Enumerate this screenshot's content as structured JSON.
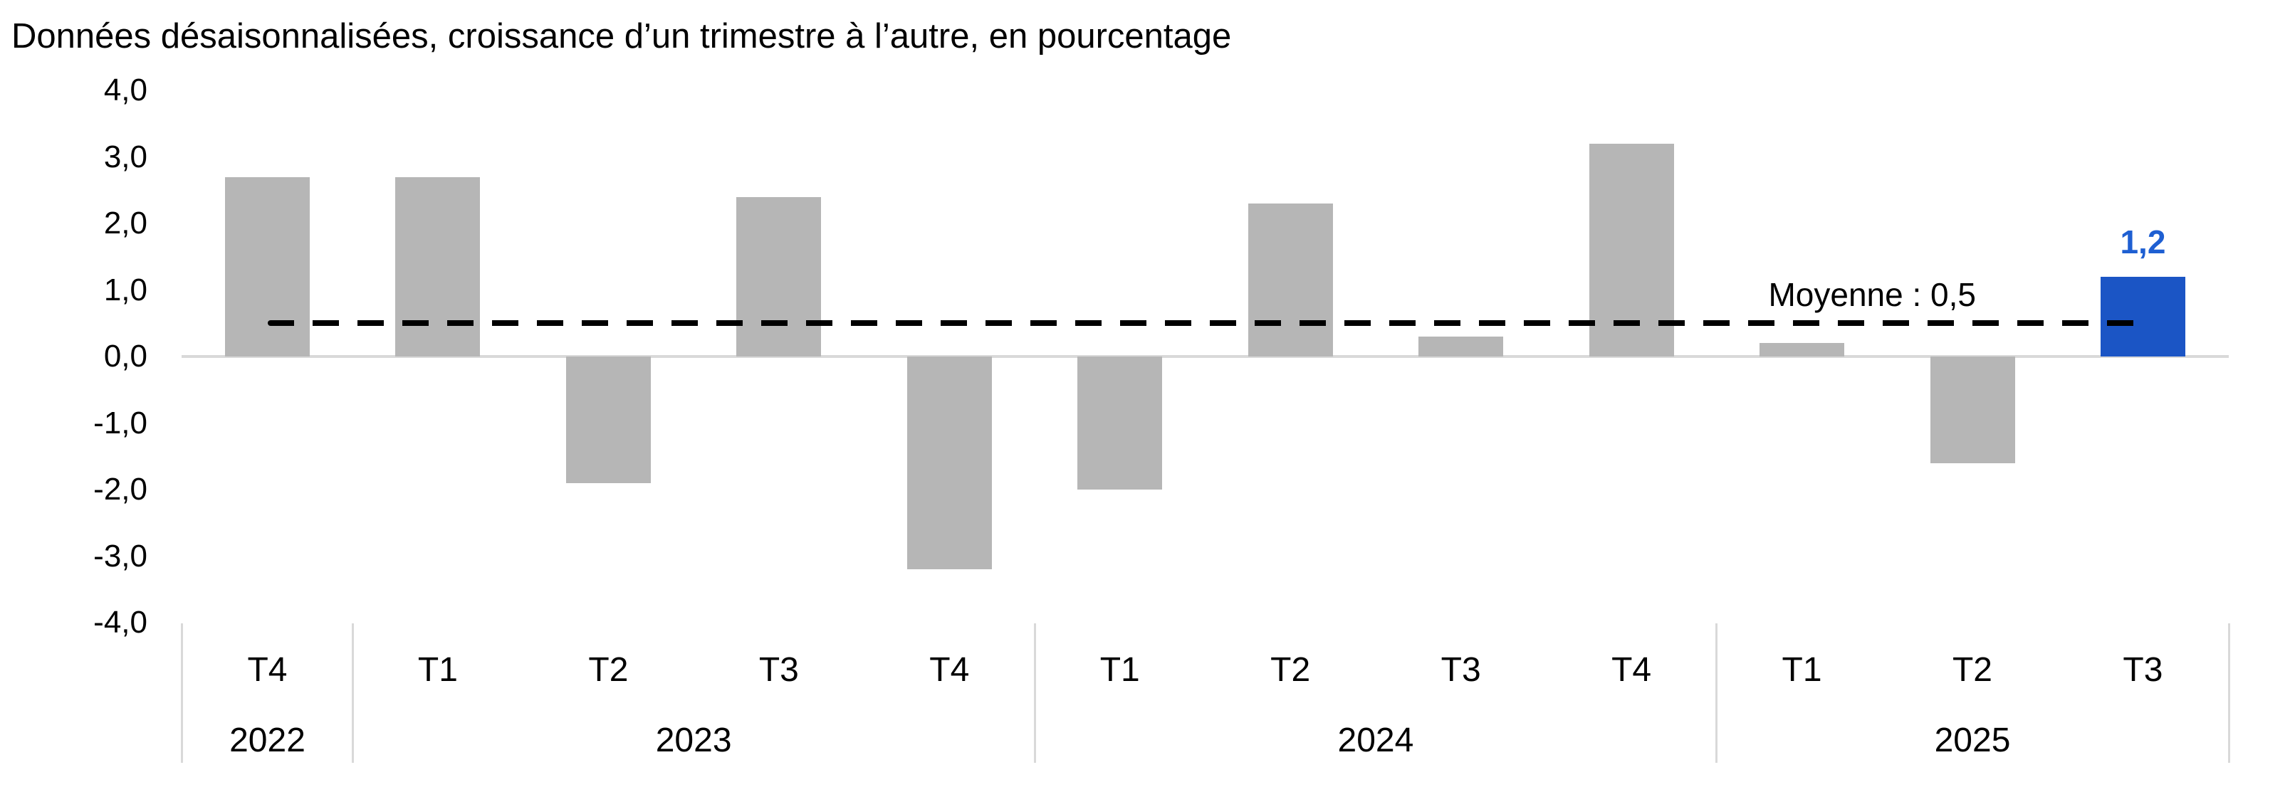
{
  "title": "Données désaisonnalisées, croissance d’un trimestre à l’autre, en pourcentage",
  "chart_data": {
    "type": "bar",
    "quarters": [
      "T4",
      "T1",
      "T2",
      "T3",
      "T4",
      "T1",
      "T2",
      "T3",
      "T4",
      "T1",
      "T2",
      "T3"
    ],
    "year_groups": [
      {
        "label": "2022",
        "count": 1
      },
      {
        "label": "2023",
        "count": 4
      },
      {
        "label": "2024",
        "count": 4
      },
      {
        "label": "2025",
        "count": 3
      }
    ],
    "values": [
      2.7,
      2.7,
      -1.9,
      2.4,
      -3.2,
      -2.0,
      2.3,
      0.3,
      3.2,
      0.2,
      -1.6,
      1.2
    ],
    "highlight_index": 11,
    "highlight_value_label": "1,2",
    "mean_line": {
      "value": 0.5,
      "label": "Moyenne : 0,5"
    },
    "y_axis": {
      "min": -4.0,
      "max": 4.0,
      "step": 1.0,
      "tick_labels": [
        "4,0",
        "3,0",
        "2,0",
        "1,0",
        "0,0",
        "-1,0",
        "-2,0",
        "-3,0",
        "-4,0"
      ]
    },
    "legend": null,
    "grid": "off",
    "colors": {
      "bar": "#B6B6B6",
      "highlight_bar": "#1B55C5",
      "highlight_label": "#1E5FD2",
      "axis_line": "#D9D9D9",
      "mean_line": "#000000",
      "text": "#000000"
    }
  }
}
